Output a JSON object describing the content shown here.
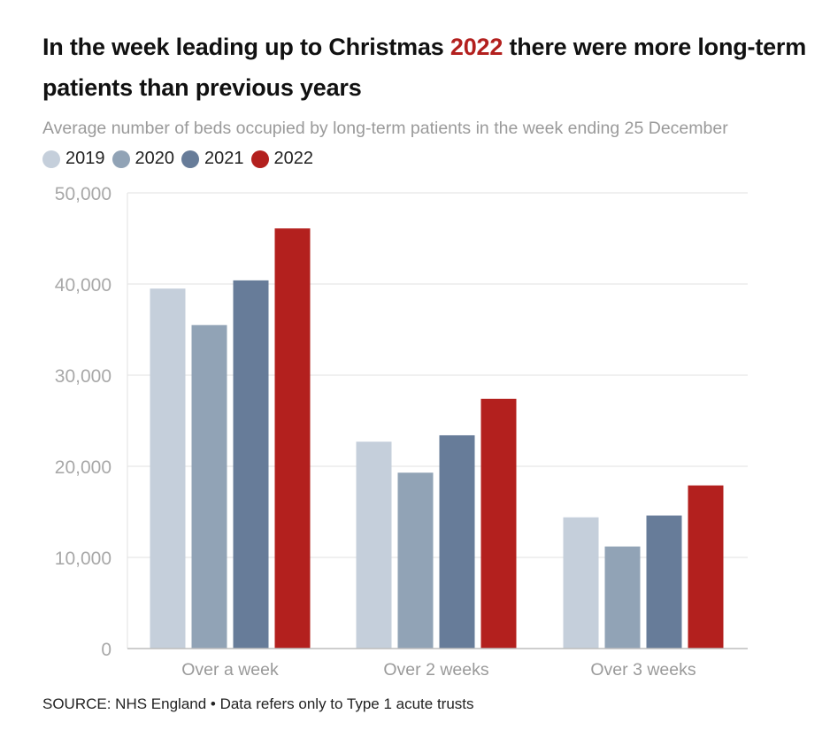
{
  "title": {
    "before": "In the week leading up to Christmas ",
    "highlight": "2022",
    "after": " there were more long-term patients than previous years"
  },
  "subtitle": "Average number of beds occupied by long-term patients in the week ending 25 December",
  "source": "SOURCE: NHS England • Data refers only to Type 1 acute trusts",
  "colors": {
    "title_highlight": "#b3201e",
    "gridline": "#e6e6e6",
    "axis": "#bdbdbd"
  },
  "chart_data": {
    "type": "bar",
    "title": "In the week leading up to Christmas 2022 there were more long-term patients than previous years",
    "subtitle": "Average number of beds occupied by long-term patients in the week ending 25 December",
    "categories": [
      "Over a week",
      "Over 2 weeks",
      "Over 3 weeks"
    ],
    "series": [
      {
        "name": "2019",
        "color": "#c5cfdb",
        "values": [
          39500,
          22700,
          14400
        ]
      },
      {
        "name": "2020",
        "color": "#91a3b6",
        "values": [
          35500,
          19300,
          11200
        ]
      },
      {
        "name": "2021",
        "color": "#677c99",
        "values": [
          40400,
          23400,
          14600
        ]
      },
      {
        "name": "2022",
        "color": "#b3201e",
        "values": [
          46100,
          27400,
          17900
        ]
      }
    ],
    "ylim": [
      0,
      50000
    ],
    "yticks": [
      0,
      10000,
      20000,
      30000,
      40000,
      50000
    ],
    "ytick_labels": [
      "0",
      "10,000",
      "20,000",
      "30,000",
      "40,000",
      "50,000"
    ],
    "grid": true,
    "legend": "top-left",
    "xlabel": "",
    "ylabel": ""
  }
}
